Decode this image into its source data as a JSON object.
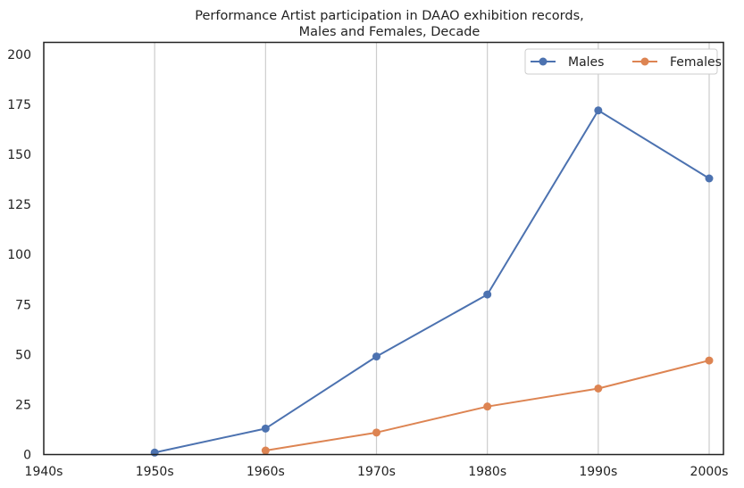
{
  "chart_data": {
    "type": "line",
    "title_lines": [
      "Performance Artist participation in DAAO exhibition records,",
      "Males and Females, Decade"
    ],
    "xlabel": "",
    "ylabel": "",
    "categories": [
      "1940s",
      "1950s",
      "1960s",
      "1970s",
      "1980s",
      "1990s",
      "2000s"
    ],
    "ylim": [
      0,
      206
    ],
    "yticks": [
      0,
      25,
      50,
      75,
      100,
      125,
      150,
      175,
      200
    ],
    "grid": "vertical",
    "legend": "top-right",
    "series": [
      {
        "name": "Males",
        "color": "#4c72b0",
        "points": [
          [
            "1950s",
            1
          ],
          [
            "1960s",
            13
          ],
          [
            "1970s",
            49
          ],
          [
            "1980s",
            80
          ],
          [
            "1990s",
            172
          ],
          [
            "2000s",
            138
          ]
        ]
      },
      {
        "name": "Females",
        "color": "#dd8452",
        "points": [
          [
            "1960s",
            2
          ],
          [
            "1970s",
            11
          ],
          [
            "1980s",
            24
          ],
          [
            "1990s",
            33
          ],
          [
            "2000s",
            47
          ]
        ]
      }
    ]
  }
}
